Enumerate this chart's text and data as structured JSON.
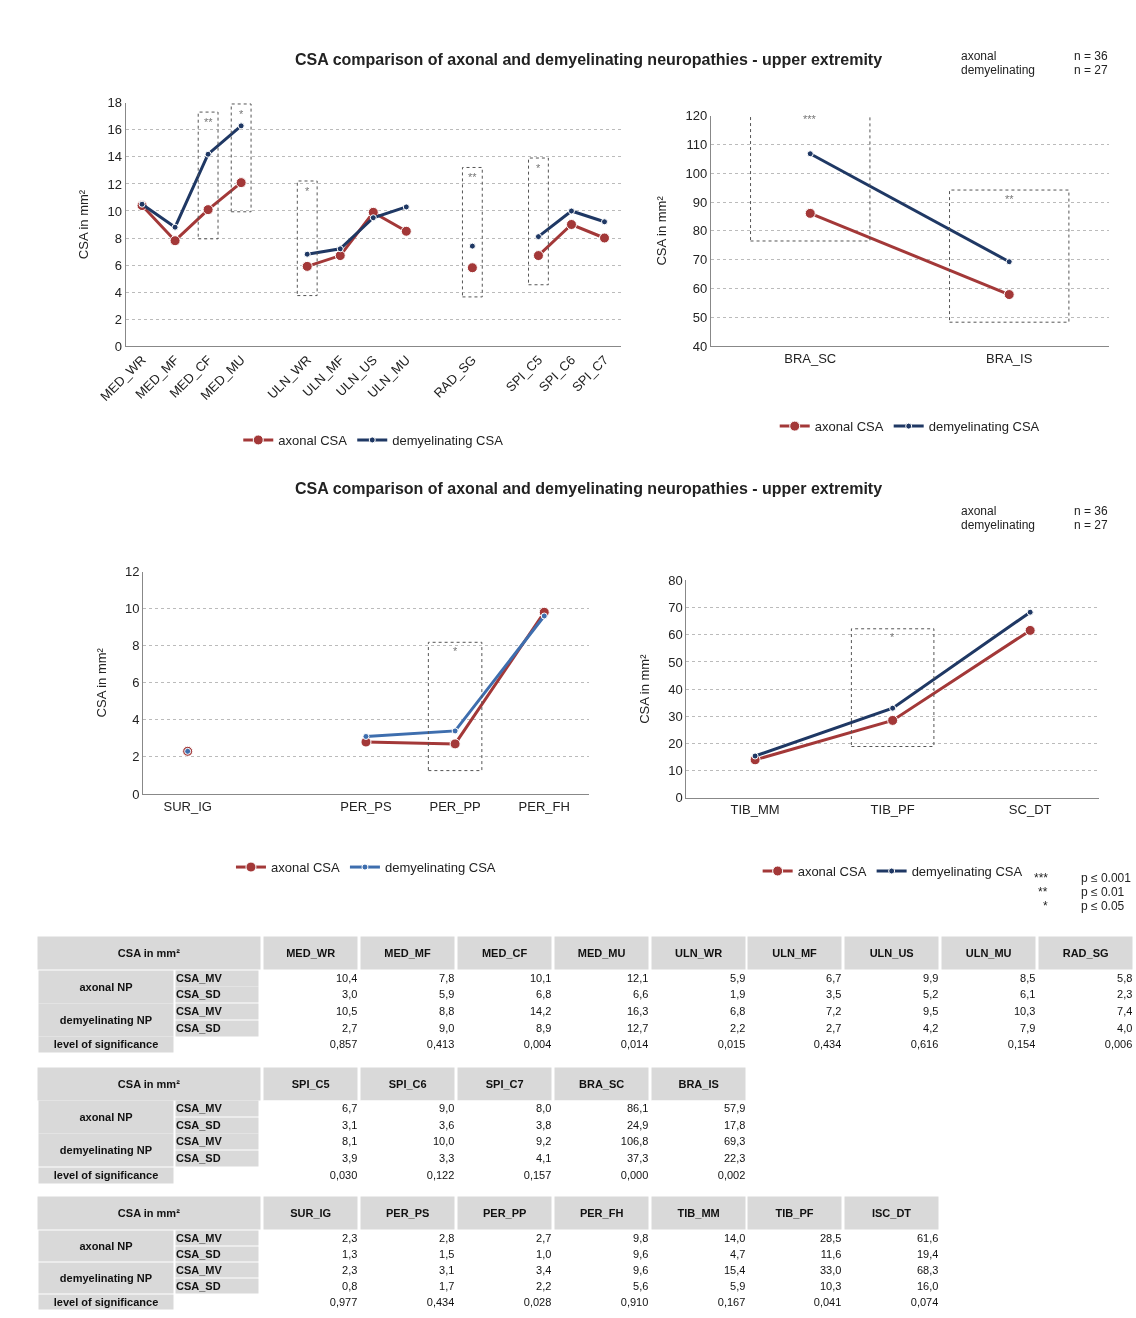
{
  "chart_data": [
    {
      "type": "line",
      "title": "CSA comparison of axonal and demyelinating neuropathies - upper extremity",
      "ylabel": "CSA in mm²",
      "categories": [
        "MED_WR",
        "MED_MF",
        "MED_CF",
        "MED_MU",
        null,
        "ULN_WR",
        "ULN_MF",
        "ULN_US",
        "ULN_MU",
        null,
        "RAD_SG",
        null,
        "SPI_C5",
        "SPI_C6",
        "SPI_C7"
      ],
      "series": [
        {
          "name": "axonal CSA",
          "color": "#a33838",
          "values": [
            10.4,
            7.8,
            10.1,
            12.1,
            null,
            5.9,
            6.7,
            9.9,
            8.5,
            null,
            5.8,
            null,
            6.7,
            9.0,
            8.0
          ]
        },
        {
          "name": "demyelinating CSA",
          "color": "#1f3864",
          "values": [
            10.5,
            8.8,
            14.2,
            16.3,
            null,
            6.8,
            7.2,
            9.5,
            10.3,
            null,
            7.4,
            null,
            8.1,
            10.0,
            9.2
          ]
        }
      ],
      "ylim": [
        0,
        18
      ],
      "yticks": [
        0,
        2,
        4,
        6,
        8,
        10,
        12,
        14,
        16,
        18
      ],
      "grid": "y",
      "legend": "bottom",
      "marker": "circle",
      "annotations": [
        "**",
        "*",
        "*",
        "**",
        "*"
      ]
    },
    {
      "type": "line",
      "ylabel": "CSA in mm²",
      "categories": [
        "BRA_SC",
        "BRA_IS"
      ],
      "series": [
        {
          "name": "axonal CSA",
          "color": "#a33838",
          "values": [
            86.1,
            57.9
          ]
        },
        {
          "name": "demyelinating CSA",
          "color": "#1f3864",
          "values": [
            106.8,
            69.3
          ]
        }
      ],
      "ylim": [
        40,
        120
      ],
      "yticks": [
        40,
        50,
        60,
        70,
        80,
        90,
        100,
        110,
        120
      ],
      "grid": "y",
      "legend": "bottom",
      "marker": "circle",
      "annotations": [
        "***",
        "**",
        "axonal",
        "n = 36",
        "demyelinating",
        "n = 27"
      ]
    },
    {
      "type": "line",
      "title": "CSA comparison of axonal and demyelinating neuropathies - upper extremity",
      "ylabel": "CSA in mm²",
      "categories": [
        "SUR_IG",
        null,
        "PER_PS",
        "PER_PP",
        "PER_FH"
      ],
      "series": [
        {
          "name": "axonal CSA",
          "color": "#a33838",
          "values": [
            2.3,
            null,
            2.8,
            2.7,
            9.8
          ]
        },
        {
          "name": "demyelinating CSA",
          "color": "#3e6eae",
          "values": [
            2.3,
            null,
            3.1,
            3.4,
            9.6
          ]
        }
      ],
      "ylim": [
        0,
        12
      ],
      "yticks": [
        0,
        2,
        4,
        6,
        8,
        10,
        12
      ],
      "grid": "y",
      "legend": "bottom",
      "marker": "circle",
      "annotations": [
        "*"
      ]
    },
    {
      "type": "line",
      "ylabel": "CSA in mm²",
      "categories": [
        "TIB_MM",
        "TIB_PF",
        "SC_DT"
      ],
      "series": [
        {
          "name": "axonal CSA",
          "color": "#a33838",
          "values": [
            14.0,
            28.5,
            61.6
          ]
        },
        {
          "name": "demyelinating CSA",
          "color": "#1f3864",
          "values": [
            15.4,
            33.0,
            68.3
          ]
        }
      ],
      "ylim": [
        0,
        80
      ],
      "yticks": [
        0,
        10,
        20,
        30,
        40,
        50,
        60,
        70,
        80
      ],
      "grid": "y",
      "legend": "bottom",
      "marker": "circle",
      "annotations": [
        "*",
        "axonal",
        "n = 36",
        "demyelinating",
        "n = 27",
        "***",
        "p ≤ 0.001",
        "**",
        "p ≤ 0.01",
        "*",
        "p ≤ 0.05"
      ]
    },
    {
      "type": "other",
      "title": "CSA in mm²",
      "categories": [
        "MED_WR",
        "MED_MF",
        "MED_CF",
        "MED_MU",
        "ULN_WR",
        "ULN_MF",
        "ULN_US",
        "ULN_MU",
        "RAD_SG"
      ],
      "y_categories": [
        "axonal NP",
        null,
        "demyelinating NP",
        null,
        "level of significance"
      ],
      "y2_categories": [
        "CSA_MV",
        "CSA_SD",
        "CSA_MV",
        "CSA_SD",
        null
      ],
      "cell_labels": [
        [
          "10,4",
          "7,8",
          "10,1",
          "12,1",
          "5,9",
          "6,7",
          "9,9",
          "8,5",
          "5,8"
        ],
        [
          "3,0",
          "5,9",
          "6,8",
          "6,6",
          "1,9",
          "3,5",
          "5,2",
          "6,1",
          "2,3"
        ],
        [
          "10,5",
          "8,8",
          "14,2",
          "16,3",
          "6,8",
          "7,2",
          "9,5",
          "10,3",
          "7,4"
        ],
        [
          "2,7",
          "9,0",
          "8,9",
          "12,7",
          "2,2",
          "2,7",
          "4,2",
          "7,9",
          "4,0"
        ],
        [
          "0,857",
          "0,413",
          "0,004",
          "0,014",
          "0,015",
          "0,434",
          "0,616",
          "0,154",
          "0,006"
        ]
      ]
    },
    {
      "type": "other",
      "title": "CSA in mm²",
      "categories": [
        "SPI_C5",
        "SPI_C6",
        "SPI_C7",
        "BRA_SC",
        "BRA_IS",
        null,
        null,
        null,
        null
      ],
      "y_categories": [
        "axonal NP",
        null,
        "demyelinating NP",
        null,
        "level of significance"
      ],
      "y2_categories": [
        "CSA_MV",
        "CSA_SD",
        "CSA_MV",
        "CSA_SD",
        null
      ],
      "cell_labels": [
        [
          "6,7",
          "9,0",
          "8,0",
          "86,1",
          "57,9",
          null,
          null,
          null,
          null
        ],
        [
          "3,1",
          "3,6",
          "3,8",
          "24,9",
          "17,8",
          null,
          null,
          null,
          null
        ],
        [
          "8,1",
          "10,0",
          "9,2",
          "106,8",
          "69,3",
          null,
          null,
          null,
          null
        ],
        [
          "3,9",
          "3,3",
          "4,1",
          "37,3",
          "22,3",
          null,
          null,
          null,
          null
        ],
        [
          "0,030",
          "0,122",
          "0,157",
          "0,000",
          "0,002",
          null,
          null,
          null,
          null
        ]
      ]
    },
    {
      "type": "other",
      "title": "CSA in mm²",
      "categories": [
        "SUR_IG",
        "PER_PS",
        "PER_PP",
        "PER_FH",
        "TIB_MM",
        "TIB_PF",
        "ISC_DT",
        null,
        null
      ],
      "y_categories": [
        "axonal NP",
        null,
        "demyelinating NP",
        null,
        "level of significance"
      ],
      "y2_categories": [
        "CSA_MV",
        "CSA_SD",
        "CSA_MV",
        "CSA_SD",
        null
      ],
      "cell_labels": [
        [
          "2,3",
          "2,8",
          "2,7",
          "9,8",
          "14,0",
          "28,5",
          "61,6",
          null,
          null
        ],
        [
          "1,3",
          "1,5",
          "1,0",
          "9,6",
          "4,7",
          "11,6",
          "19,4",
          null,
          null
        ],
        [
          "2,3",
          "3,1",
          "3,4",
          "9,6",
          "15,4",
          "33,0",
          "68,3",
          null,
          null
        ],
        [
          "0,8",
          "1,7",
          "2,2",
          "5,6",
          "5,9",
          "10,3",
          "16,0",
          null,
          null
        ],
        [
          "0,977",
          "0,434",
          "0,028",
          "0,910",
          "0,167",
          "0,041",
          "0,074",
          null,
          null
        ]
      ]
    }
  ]
}
